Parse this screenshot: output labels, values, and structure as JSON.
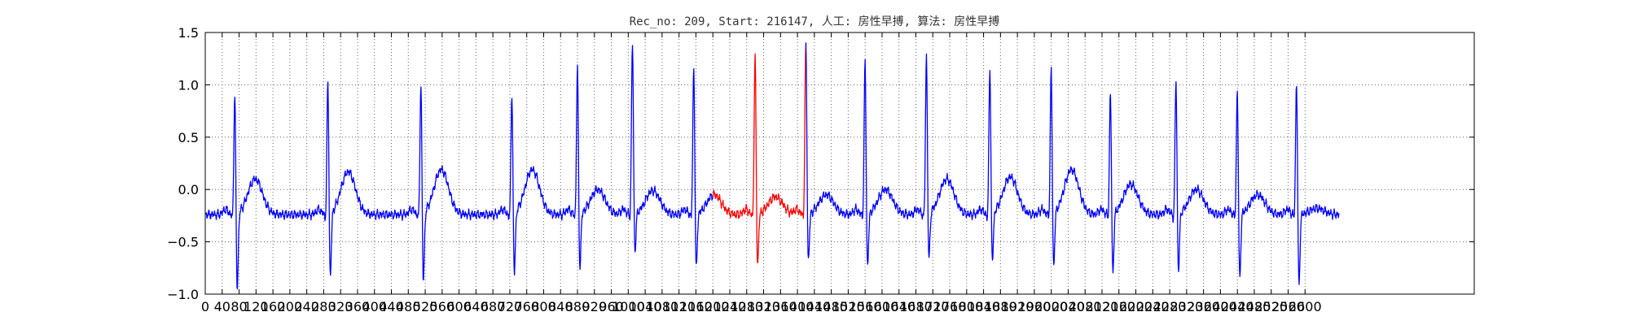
{
  "chart_data": {
    "type": "line",
    "title": "Rec_no: 209, Start: 216147, 人工: 房性早搏, 算法: 房性早搏",
    "xlabel": "",
    "ylabel": "",
    "xlim": [
      0,
      3000
    ],
    "ylim": [
      -1.0,
      1.5
    ],
    "grid": true,
    "grid_style": "dotted",
    "yticks": [
      1.5,
      1.0,
      0.5,
      0.0,
      -0.5,
      -1.0
    ],
    "ytick_labels": [
      "1.5",
      "1.0",
      "0.5",
      "0.0",
      "−0.5",
      "−1.0"
    ],
    "xticks": [
      0,
      40,
      80,
      120,
      160,
      200,
      240,
      280,
      320,
      360,
      400,
      440,
      480,
      520,
      560,
      600,
      640,
      680,
      720,
      760,
      800,
      840,
      880,
      920,
      960,
      1000,
      1040,
      1080,
      1120,
      1160,
      1200,
      1240,
      1280,
      1320,
      1360,
      1400,
      1440,
      1480,
      1520,
      1560,
      1600,
      1640,
      1680,
      1720,
      1760,
      1800,
      1840,
      1880,
      1920,
      1960,
      2000,
      2040,
      2080,
      2120,
      2160,
      2200,
      2240,
      2280,
      2320,
      2360,
      2400,
      2440,
      2480,
      2520,
      2560,
      2600
    ],
    "series_colors": {
      "normal": "#0000ff",
      "highlight": "#ff0000"
    },
    "highlight_range": [
      1200,
      1420
    ],
    "beats": [
      {
        "x": 70,
        "amp": 1.04,
        "neg": -0.98,
        "t": 0.1
      },
      {
        "x": 290,
        "amp": 1.14,
        "neg": -0.88,
        "t": 0.17
      },
      {
        "x": 510,
        "amp": 1.13,
        "neg": -0.92,
        "t": 0.19
      },
      {
        "x": 725,
        "amp": 1.03,
        "neg": -0.83,
        "t": 0.19
      },
      {
        "x": 880,
        "amp": 1.27,
        "neg": -0.78,
        "t": 0.0
      },
      {
        "x": 1010,
        "amp": 1.49,
        "neg": -0.63,
        "t": -0.01
      },
      {
        "x": 1155,
        "amp": 1.28,
        "neg": -0.8,
        "t": -0.05
      },
      {
        "x": 1300,
        "amp": 1.37,
        "neg": -0.76,
        "t": -0.07
      },
      {
        "x": 1420,
        "amp": 1.49,
        "neg": -0.73,
        "t": -0.05
      },
      {
        "x": 1560,
        "amp": 1.32,
        "neg": -0.78,
        "t": 0.0
      },
      {
        "x": 1705,
        "amp": 1.37,
        "neg": -0.72,
        "t": 0.1
      },
      {
        "x": 1855,
        "amp": 1.26,
        "neg": -0.73,
        "t": 0.12
      },
      {
        "x": 2000,
        "amp": 1.25,
        "neg": -0.78,
        "t": 0.19
      },
      {
        "x": 2140,
        "amp": 1.03,
        "neg": -0.82,
        "t": 0.05
      },
      {
        "x": 2295,
        "amp": 1.16,
        "neg": -0.82,
        "t": 0.0
      },
      {
        "x": 2440,
        "amp": 1.06,
        "neg": -0.88,
        "t": -0.05
      },
      {
        "x": 2580,
        "amp": 1.15,
        "neg": -0.94,
        "t": -0.18
      }
    ],
    "signal_end": 2680
  }
}
